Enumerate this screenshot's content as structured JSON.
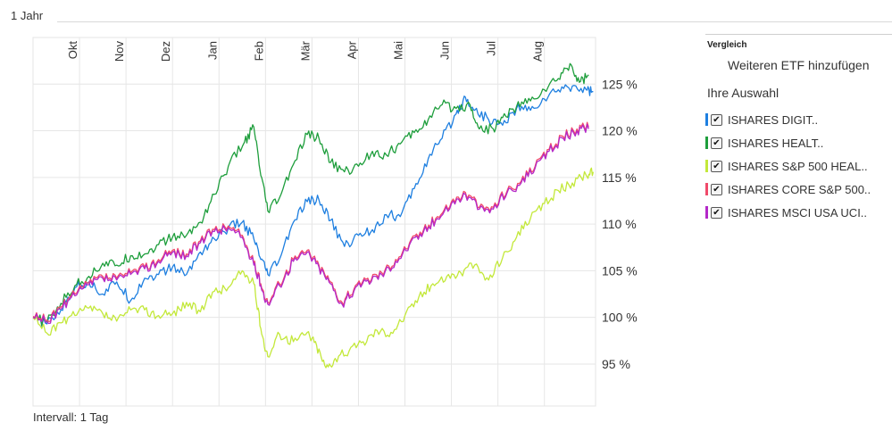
{
  "period": "1 Jahr",
  "interval": "Intervall: 1 Tag",
  "sidebar": {
    "heading": "Vergleich",
    "add_label": "Weiteren ETF hinzufügen",
    "selection_heading": "Ihre Auswahl",
    "items": [
      {
        "label": "ISHARES DIGIT..",
        "color": "#1e7fe0",
        "checked": true
      },
      {
        "label": "ISHARES HEALT..",
        "color": "#1e9e3c",
        "checked": true
      },
      {
        "label": "ISHARES S&P 500 HEAL..",
        "color": "#c3e83a",
        "checked": true
      },
      {
        "label": "ISHARES CORE S&P 500..",
        "color": "#f04a6a",
        "checked": true
      },
      {
        "label": "ISHARES MSCI USA UCI..",
        "color": "#b428c8",
        "checked": true
      }
    ]
  },
  "chart_data": {
    "type": "line",
    "x_unit": "months since start (Sep)",
    "x_range": [
      0,
      12.1
    ],
    "ylim": [
      90.5,
      130
    ],
    "y_ticks": [
      95,
      100,
      105,
      110,
      115,
      120,
      125
    ],
    "y_tick_labels": [
      "95 %",
      "100 %",
      "105 %",
      "110 %",
      "115 %",
      "120 %",
      "125 %"
    ],
    "months": [
      {
        "label": "Okt",
        "x": 1
      },
      {
        "label": "Nov",
        "x": 2
      },
      {
        "label": "Dez",
        "x": 3
      },
      {
        "label": "Jan",
        "x": 4
      },
      {
        "label": "Feb",
        "x": 5
      },
      {
        "label": "Mär",
        "x": 6
      },
      {
        "label": "Apr",
        "x": 7
      },
      {
        "label": "Mai",
        "x": 8
      },
      {
        "label": "Jun",
        "x": 9
      },
      {
        "label": "Jul",
        "x": 10
      },
      {
        "label": "Aug",
        "x": 11
      }
    ],
    "series": [
      {
        "name": "ISHARES DIGIT..",
        "color": "#1e7fe0",
        "points": [
          [
            0,
            100
          ],
          [
            0.3,
            99.3
          ],
          [
            0.6,
            100.8
          ],
          [
            0.9,
            103.2
          ],
          [
            1.2,
            103.8
          ],
          [
            1.5,
            102.5
          ],
          [
            1.8,
            103.8
          ],
          [
            2.1,
            101.8
          ],
          [
            2.4,
            104.2
          ],
          [
            2.7,
            104.6
          ],
          [
            3.0,
            105.4
          ],
          [
            3.3,
            104.6
          ],
          [
            3.6,
            107
          ],
          [
            3.9,
            108.4
          ],
          [
            4.2,
            109.6
          ],
          [
            4.5,
            110.2
          ],
          [
            4.75,
            108.4
          ],
          [
            4.9,
            106.2
          ],
          [
            5.05,
            104.6
          ],
          [
            5.3,
            106.2
          ],
          [
            5.6,
            110.2
          ],
          [
            5.9,
            112.4
          ],
          [
            6.15,
            112.6
          ],
          [
            6.4,
            110.4
          ],
          [
            6.7,
            107.6
          ],
          [
            7.0,
            108.8
          ],
          [
            7.3,
            109.4
          ],
          [
            7.6,
            111
          ],
          [
            7.9,
            110.8
          ],
          [
            8.2,
            113.8
          ],
          [
            8.5,
            117
          ],
          [
            8.8,
            119.2
          ],
          [
            9.1,
            121.8
          ],
          [
            9.3,
            123.6
          ],
          [
            9.5,
            122.2
          ],
          [
            9.8,
            121.2
          ],
          [
            10.1,
            120.6
          ],
          [
            10.4,
            122.4
          ],
          [
            10.7,
            122.2
          ],
          [
            11.0,
            123.4
          ],
          [
            11.3,
            124.4
          ],
          [
            11.6,
            124.8
          ],
          [
            11.9,
            124.4
          ],
          [
            12.05,
            124.2
          ]
        ]
      },
      {
        "name": "ISHARES HEALT..",
        "color": "#1e9e3c",
        "points": [
          [
            0,
            100
          ],
          [
            0.3,
            99.5
          ],
          [
            0.6,
            101.5
          ],
          [
            0.9,
            103.4
          ],
          [
            1.2,
            104.4
          ],
          [
            1.5,
            105.8
          ],
          [
            1.8,
            105.6
          ],
          [
            2.1,
            106.6
          ],
          [
            2.4,
            106.8
          ],
          [
            2.7,
            107.8
          ],
          [
            3.0,
            108.6
          ],
          [
            3.3,
            108.8
          ],
          [
            3.6,
            110.2
          ],
          [
            3.9,
            113.2
          ],
          [
            4.2,
            116.2
          ],
          [
            4.55,
            118.8
          ],
          [
            4.75,
            120.4
          ],
          [
            4.9,
            115.2
          ],
          [
            5.05,
            111.4
          ],
          [
            5.3,
            112.8
          ],
          [
            5.6,
            116.4
          ],
          [
            5.9,
            119.6
          ],
          [
            6.15,
            119.2
          ],
          [
            6.4,
            116.6
          ],
          [
            6.7,
            115.6
          ],
          [
            7.0,
            116.2
          ],
          [
            7.3,
            117.8
          ],
          [
            7.6,
            117.4
          ],
          [
            7.9,
            118.6
          ],
          [
            8.2,
            119.8
          ],
          [
            8.5,
            121.2
          ],
          [
            8.8,
            122.8
          ],
          [
            9.1,
            122.4
          ],
          [
            9.4,
            122.8
          ],
          [
            9.6,
            120.2
          ],
          [
            9.9,
            120.2
          ],
          [
            10.1,
            121.4
          ],
          [
            10.4,
            122.6
          ],
          [
            10.7,
            123.2
          ],
          [
            11.0,
            124.4
          ],
          [
            11.3,
            125.6
          ],
          [
            11.55,
            127.2
          ],
          [
            11.75,
            125.2
          ],
          [
            11.95,
            126
          ]
        ]
      },
      {
        "name": "ISHARES S&P 500 HEAL..",
        "color": "#c3e83a",
        "points": [
          [
            0,
            100
          ],
          [
            0.3,
            98.3
          ],
          [
            0.6,
            99.4
          ],
          [
            0.9,
            100.2
          ],
          [
            1.2,
            101
          ],
          [
            1.5,
            100.4
          ],
          [
            1.8,
            99.6
          ],
          [
            2.1,
            100.8
          ],
          [
            2.4,
            100.8
          ],
          [
            2.7,
            100.2
          ],
          [
            3.0,
            100.4
          ],
          [
            3.3,
            101.6
          ],
          [
            3.6,
            100.6
          ],
          [
            3.9,
            102.8
          ],
          [
            4.2,
            103.2
          ],
          [
            4.5,
            105
          ],
          [
            4.75,
            103.6
          ],
          [
            4.9,
            98.8
          ],
          [
            5.05,
            95.8
          ],
          [
            5.3,
            98.2
          ],
          [
            5.6,
            97.4
          ],
          [
            5.9,
            98.4
          ],
          [
            6.1,
            97
          ],
          [
            6.3,
            94.6
          ],
          [
            6.5,
            95.6
          ],
          [
            6.8,
            96.4
          ],
          [
            7.1,
            97.4
          ],
          [
            7.4,
            98.6
          ],
          [
            7.7,
            98.4
          ],
          [
            8.0,
            100.2
          ],
          [
            8.3,
            102.2
          ],
          [
            8.6,
            103.6
          ],
          [
            8.9,
            104.4
          ],
          [
            9.2,
            104.8
          ],
          [
            9.5,
            105.6
          ],
          [
            9.8,
            104
          ],
          [
            10.1,
            106.4
          ],
          [
            10.4,
            108.6
          ],
          [
            10.7,
            110.6
          ],
          [
            11.0,
            112.2
          ],
          [
            11.3,
            113.6
          ],
          [
            11.6,
            114.4
          ],
          [
            11.9,
            115.2
          ],
          [
            12.05,
            115.6
          ]
        ]
      },
      {
        "name": "ISHARES CORE S&P 500..",
        "color": "#f04a6a",
        "points": [
          [
            0,
            100.1
          ],
          [
            0.3,
            99.7
          ],
          [
            0.6,
            101.1
          ],
          [
            0.9,
            102.5
          ],
          [
            1.2,
            103.7
          ],
          [
            1.5,
            104.4
          ],
          [
            1.8,
            104.2
          ],
          [
            2.1,
            104.8
          ],
          [
            2.4,
            105.4
          ],
          [
            2.7,
            106.2
          ],
          [
            3.0,
            107.2
          ],
          [
            3.3,
            106.8
          ],
          [
            3.6,
            108.2
          ],
          [
            3.9,
            109.4
          ],
          [
            4.2,
            109.8
          ],
          [
            4.5,
            108.8
          ],
          [
            4.75,
            105.8
          ],
          [
            4.9,
            103.6
          ],
          [
            5.05,
            101.6
          ],
          [
            5.3,
            103.6
          ],
          [
            5.6,
            106.2
          ],
          [
            5.9,
            107.2
          ],
          [
            6.15,
            105.6
          ],
          [
            6.4,
            103.8
          ],
          [
            6.65,
            101.6
          ],
          [
            6.9,
            103
          ],
          [
            7.2,
            104.2
          ],
          [
            7.5,
            104.8
          ],
          [
            7.8,
            106.2
          ],
          [
            8.1,
            108
          ],
          [
            8.4,
            109.4
          ],
          [
            8.7,
            110.8
          ],
          [
            9.0,
            112.4
          ],
          [
            9.3,
            113.4
          ],
          [
            9.6,
            111.8
          ],
          [
            9.9,
            111.8
          ],
          [
            10.2,
            113.6
          ],
          [
            10.5,
            114.6
          ],
          [
            10.8,
            116.2
          ],
          [
            11.1,
            118
          ],
          [
            11.4,
            119.4
          ],
          [
            11.7,
            120.2
          ],
          [
            11.95,
            120.4
          ]
        ]
      },
      {
        "name": "ISHARES MSCI USA UCI..",
        "color": "#b428c8",
        "points": [
          [
            0,
            100
          ],
          [
            0.3,
            99.5
          ],
          [
            0.6,
            100.9
          ],
          [
            0.9,
            102.3
          ],
          [
            1.2,
            103.5
          ],
          [
            1.5,
            104.2
          ],
          [
            1.8,
            104
          ],
          [
            2.1,
            104.6
          ],
          [
            2.4,
            105.2
          ],
          [
            2.7,
            106
          ],
          [
            3.0,
            107
          ],
          [
            3.3,
            106.6
          ],
          [
            3.6,
            108
          ],
          [
            3.9,
            109.2
          ],
          [
            4.2,
            109.6
          ],
          [
            4.5,
            108.6
          ],
          [
            4.75,
            105.6
          ],
          [
            4.9,
            103.4
          ],
          [
            5.05,
            101.4
          ],
          [
            5.3,
            103.4
          ],
          [
            5.6,
            106
          ],
          [
            5.9,
            107
          ],
          [
            6.15,
            105.4
          ],
          [
            6.4,
            103.6
          ],
          [
            6.65,
            101.4
          ],
          [
            6.9,
            102.8
          ],
          [
            7.2,
            104
          ],
          [
            7.5,
            104.6
          ],
          [
            7.8,
            106
          ],
          [
            8.1,
            107.8
          ],
          [
            8.4,
            109.2
          ],
          [
            8.7,
            110.6
          ],
          [
            9.0,
            112.2
          ],
          [
            9.3,
            113.2
          ],
          [
            9.6,
            111.6
          ],
          [
            9.9,
            111.6
          ],
          [
            10.2,
            113.4
          ],
          [
            10.5,
            114.4
          ],
          [
            10.8,
            116
          ],
          [
            11.1,
            117.8
          ],
          [
            11.4,
            119.2
          ],
          [
            11.7,
            120
          ],
          [
            11.95,
            120.2
          ]
        ]
      }
    ]
  }
}
